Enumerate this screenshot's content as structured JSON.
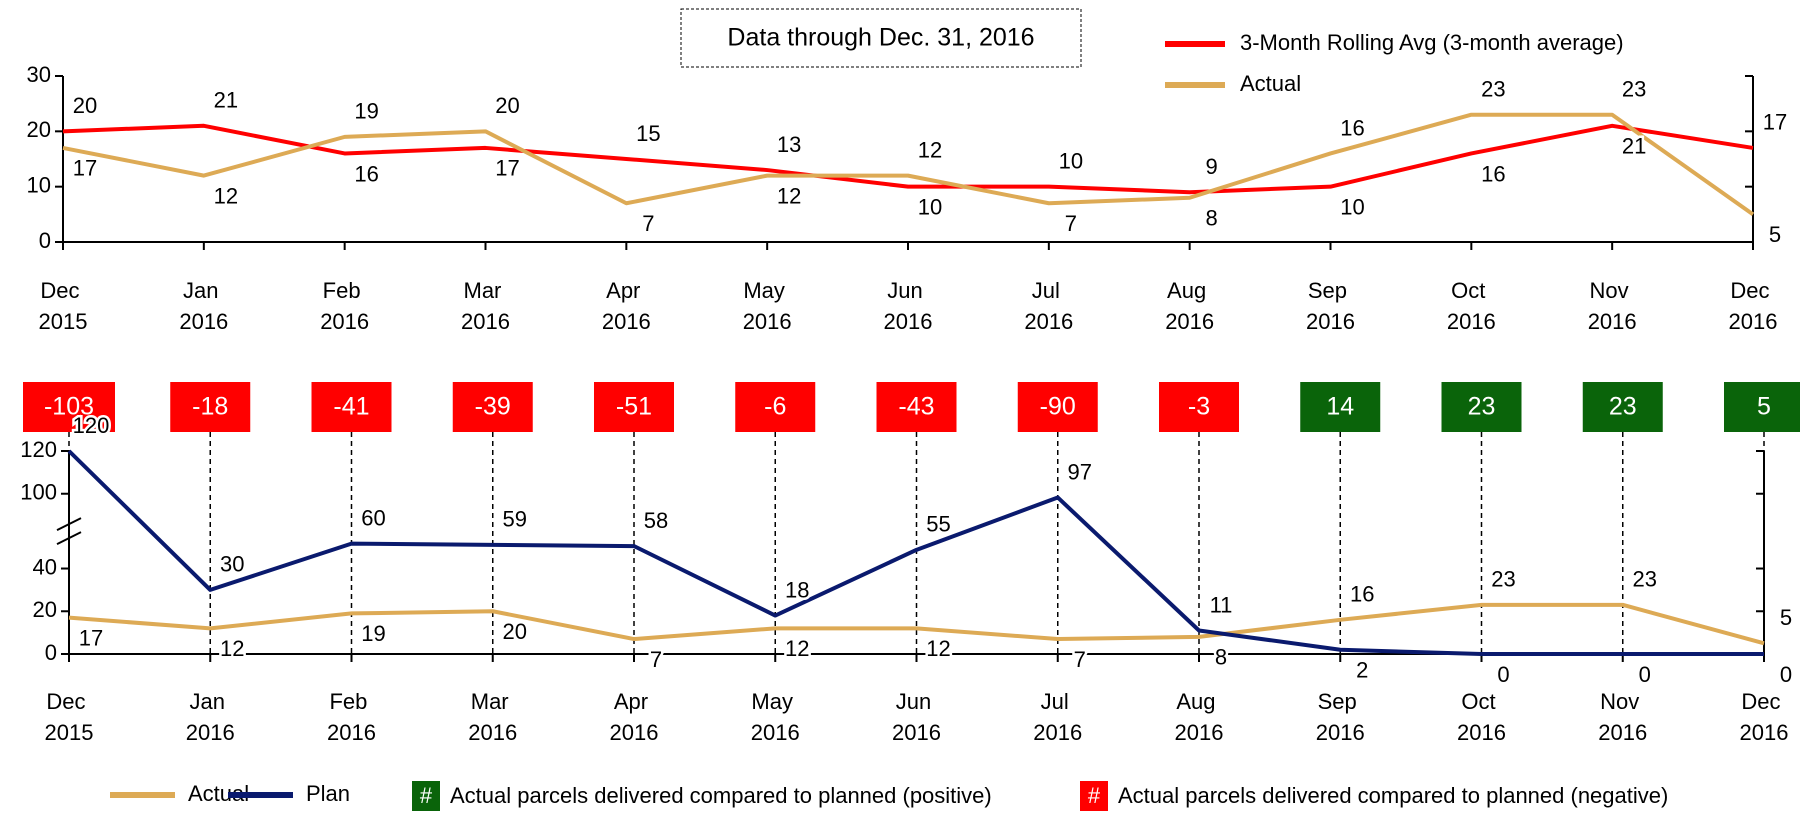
{
  "chart_data": [
    {
      "type": "line",
      "annotation": "Data through Dec. 31, 2016",
      "categories": [
        "Dec 2015",
        "Jan 2016",
        "Feb 2016",
        "Mar 2016",
        "Apr 2016",
        "May 2016",
        "Jun 2016",
        "Jul 2016",
        "Aug 2016",
        "Sep 2016",
        "Oct 2016",
        "Nov 2016",
        "Dec 2016"
      ],
      "series": [
        {
          "name": "3-Month Rolling Avg (3-month average)",
          "color": "#ff0000",
          "values": [
            20,
            21,
            16,
            17,
            15,
            13,
            10,
            10,
            9,
            10,
            16,
            21,
            17
          ]
        },
        {
          "name": "Actual",
          "color": "#ddaa55",
          "values": [
            17,
            12,
            19,
            20,
            7,
            12,
            12,
            7,
            8,
            16,
            23,
            23,
            5
          ]
        }
      ],
      "ylim": [
        0,
        30
      ],
      "yticks": [
        0,
        10,
        20,
        30
      ],
      "legend": "top-right"
    },
    {
      "type": "line",
      "categories": [
        "Dec 2015",
        "Jan 2016",
        "Feb 2016",
        "Mar 2016",
        "Apr 2016",
        "May 2016",
        "Jun 2016",
        "Jul 2016",
        "Aug 2016",
        "Sep 2016",
        "Oct 2016",
        "Nov 2016",
        "Dec 2016"
      ],
      "series": [
        {
          "name": "Actual",
          "color": "#ddaa55",
          "values": [
            17,
            12,
            19,
            20,
            7,
            12,
            12,
            7,
            8,
            16,
            23,
            23,
            5
          ]
        },
        {
          "name": "Plan",
          "color": "#0a1a6e",
          "values": [
            120,
            30,
            60,
            59,
            58,
            18,
            55,
            97,
            11,
            2,
            0,
            0,
            0
          ]
        }
      ],
      "ylim": [
        0,
        120
      ],
      "yticks": [
        0,
        20,
        40,
        100,
        120
      ],
      "broken_axis": true,
      "legend": "bottom-left",
      "differences": {
        "values": [
          -103,
          -18,
          -41,
          -39,
          -51,
          -6,
          -43,
          -90,
          -3,
          14,
          23,
          23,
          5
        ],
        "positive_color": "#0a640a",
        "negative_color": "#ff0000"
      },
      "legend_notes": [
        {
          "symbol": "#",
          "text": "Actual parcels delivered compared to planned (positive)",
          "color": "#0a640a"
        },
        {
          "symbol": "#",
          "text": "Actual parcels delivered compared to planned (negative)",
          "color": "#ff0000"
        }
      ]
    }
  ]
}
